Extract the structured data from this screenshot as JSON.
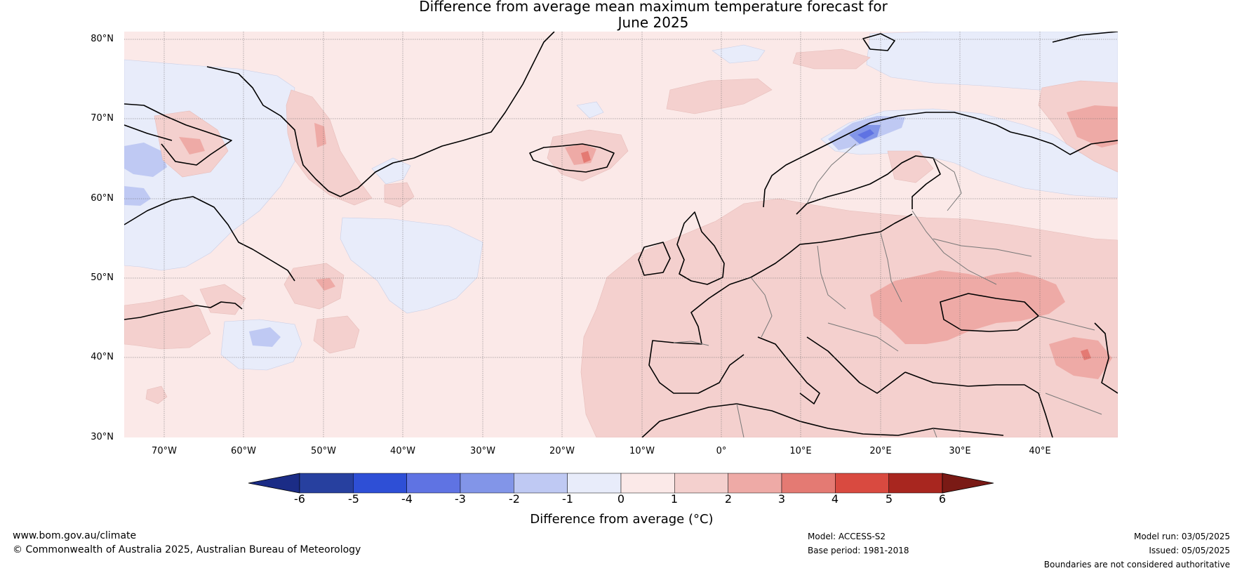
{
  "title_line1": "Difference from average mean maximum temperature forecast for",
  "title_line2": "June 2025",
  "lat_labels": [
    "80°N",
    "70°N",
    "60°N",
    "50°N",
    "40°N",
    "30°N"
  ],
  "lon_labels": [
    "70°W",
    "60°W",
    "50°W",
    "40°W",
    "30°W",
    "20°W",
    "10°W",
    "0°",
    "10°E",
    "20°E",
    "30°E",
    "40°E"
  ],
  "colorbar": {
    "title": "Difference from average (°C)",
    "ticks": [
      "-6",
      "-5",
      "-4",
      "-3",
      "-2",
      "-1",
      "0",
      "1",
      "2",
      "3",
      "4",
      "5",
      "6"
    ],
    "colors": [
      "#27409f",
      "#2e4fd6",
      "#5f73e3",
      "#8295e8",
      "#bfc9f3",
      "#e8ecfa",
      "#fbe9e8",
      "#f4d0ce",
      "#eeaaa6",
      "#e47a73",
      "#d94a40",
      "#a8261f"
    ],
    "under_color": "#1b2c86",
    "over_color": "#7a1a15"
  },
  "footer": {
    "website": "www.bom.gov.au/climate",
    "copyright": "© Commonwealth of Australia 2025, Australian Bureau of Meteorology",
    "model": "Model: ACCESS-S2",
    "base_period": "Base period: 1981-2018",
    "model_run": "Model run: 03/05/2025",
    "issued": "Issued: 05/05/2025",
    "disclaimer": "Boundaries are not considered authoritative"
  }
}
